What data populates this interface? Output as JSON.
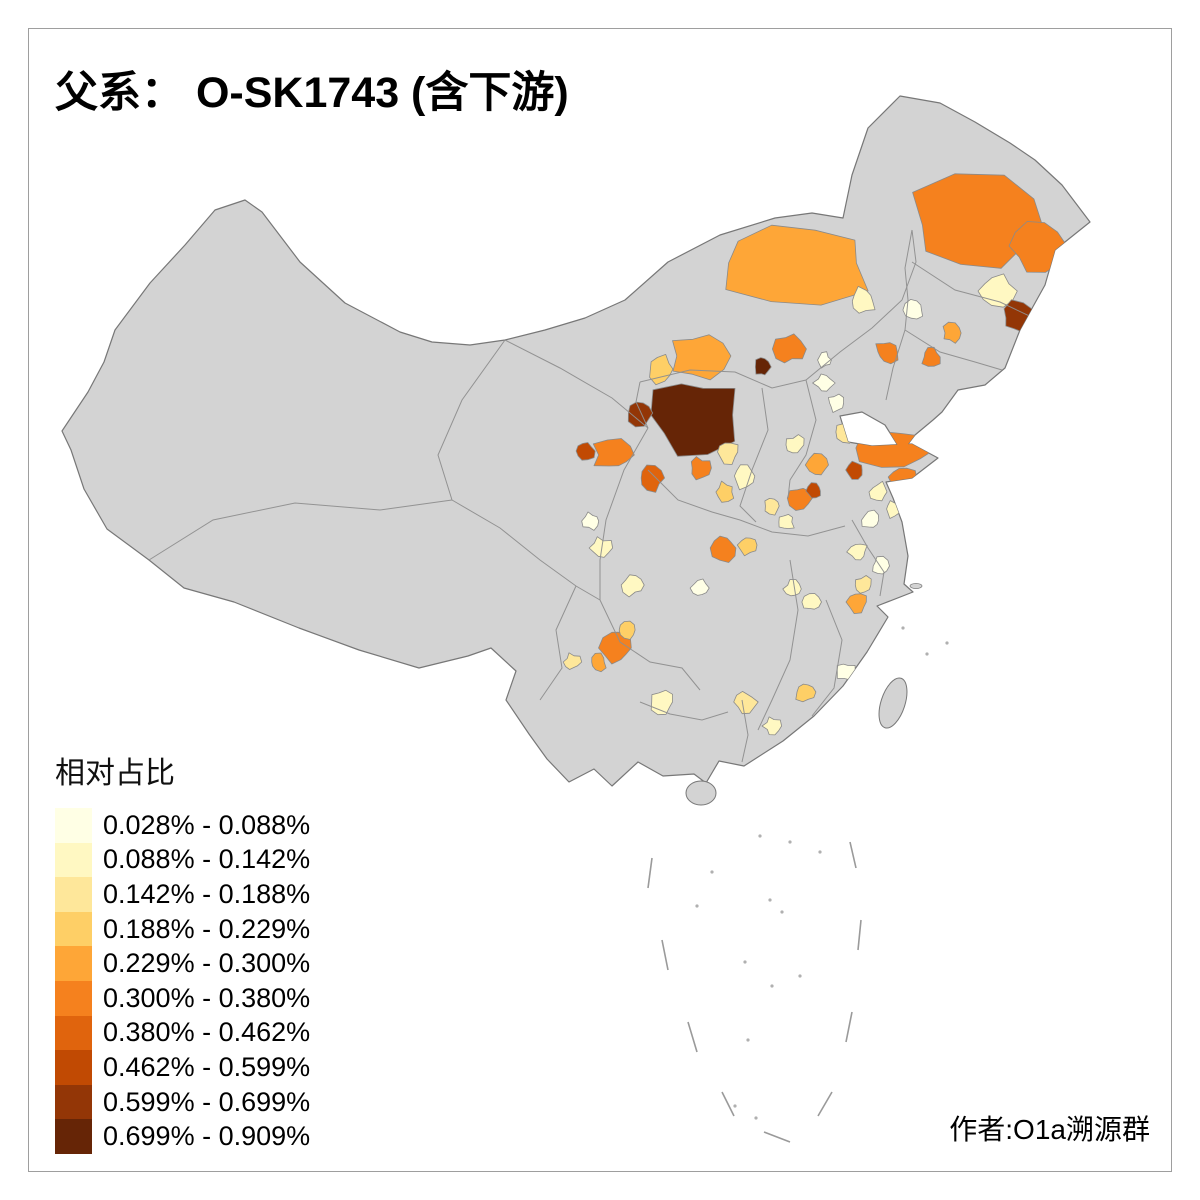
{
  "title": "父系： O-SK1743 (含下游)",
  "author": "作者:O1a溯源群",
  "legend": {
    "title": "相对占比",
    "items": [
      {
        "label": "0.028% - 0.088%",
        "color": "#FFFFE5"
      },
      {
        "label": "0.088% - 0.142%",
        "color": "#FFF8C2"
      },
      {
        "label": "0.142% - 0.188%",
        "color": "#FEE79A"
      },
      {
        "label": "0.188% - 0.229%",
        "color": "#FECF66"
      },
      {
        "label": "0.229% - 0.300%",
        "color": "#FEA637"
      },
      {
        "label": "0.300% - 0.380%",
        "color": "#F5811E"
      },
      {
        "label": "0.380% - 0.462%",
        "color": "#E0640D"
      },
      {
        "label": "0.462% - 0.599%",
        "color": "#C14A03"
      },
      {
        "label": "0.599% - 0.699%",
        "color": "#933606"
      },
      {
        "label": "0.699% - 0.909%",
        "color": "#662506"
      }
    ]
  },
  "map": {
    "background_color": "#FFFFFF",
    "frame_color": "#9E9E9E",
    "land_color": "#D3D3D3",
    "land_border_color": "#777777",
    "province_border_color": "#8F8F8F",
    "region_border_color": "#8A8A8A"
  }
}
